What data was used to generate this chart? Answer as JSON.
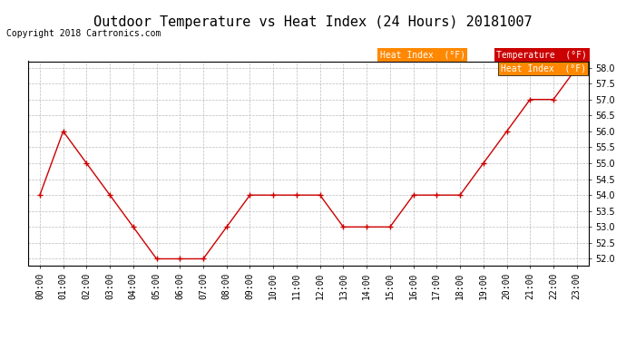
{
  "title": "Outdoor Temperature vs Heat Index (24 Hours) 20181007",
  "copyright": "Copyright 2018 Cartronics.com",
  "hours": [
    "00:00",
    "01:00",
    "02:00",
    "03:00",
    "04:00",
    "05:00",
    "06:00",
    "07:00",
    "08:00",
    "09:00",
    "10:00",
    "11:00",
    "12:00",
    "13:00",
    "14:00",
    "15:00",
    "16:00",
    "17:00",
    "18:00",
    "19:00",
    "20:00",
    "21:00",
    "22:00",
    "23:00"
  ],
  "temperature": [
    54.0,
    56.0,
    55.0,
    54.0,
    53.0,
    52.0,
    52.0,
    52.0,
    53.0,
    54.0,
    54.0,
    54.0,
    54.0,
    53.0,
    53.0,
    53.0,
    54.0,
    54.0,
    54.0,
    55.0,
    56.0,
    57.0,
    57.0,
    58.0
  ],
  "heat_index": [
    54.0,
    56.0,
    55.0,
    54.0,
    53.0,
    52.0,
    52.0,
    52.0,
    53.0,
    54.0,
    54.0,
    54.0,
    54.0,
    53.0,
    53.0,
    53.0,
    54.0,
    54.0,
    54.0,
    55.0,
    56.0,
    57.0,
    57.0,
    58.0
  ],
  "ylim": [
    51.8,
    58.2
  ],
  "yticks": [
    52.0,
    52.5,
    53.0,
    53.5,
    54.0,
    54.5,
    55.0,
    55.5,
    56.0,
    56.5,
    57.0,
    57.5,
    58.0
  ],
  "temp_color": "#cc0000",
  "heat_index_color": "#cc0000",
  "bg_color": "#ffffff",
  "grid_color": "#bbbbbb",
  "legend_heat_bg": "#ff8800",
  "legend_temp_bg": "#cc0000",
  "legend_text_color": "#ffffff",
  "title_fontsize": 11,
  "copyright_fontsize": 7,
  "tick_fontsize": 7
}
